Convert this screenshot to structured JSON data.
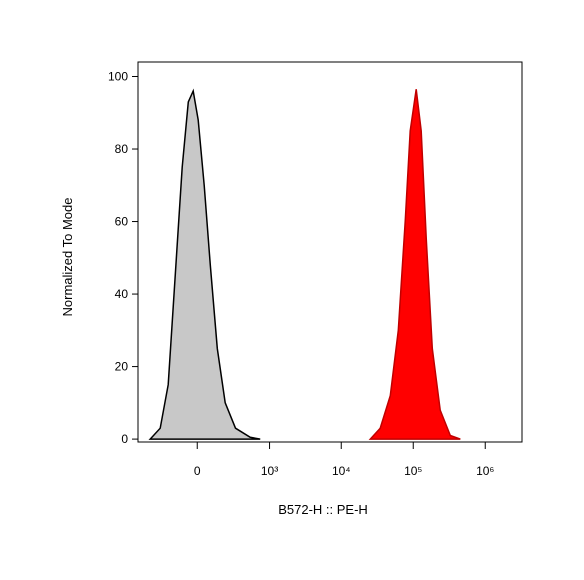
{
  "chart_data": {
    "type": "area",
    "x_label": "B572-H :: PE-H",
    "y_label": "Normalized To Mode",
    "xscale": "biexponential",
    "xlim": [
      -650,
      3240000
    ],
    "xticks": [
      0,
      {
        "value": 1000,
        "label": "10³"
      },
      {
        "value": 10000,
        "label": "10⁴"
      },
      {
        "value": 100000,
        "label": "10⁵"
      },
      {
        "value": 1000000,
        "label": "10⁶"
      }
    ],
    "ylim": [
      -0.8,
      104
    ],
    "yticks": [
      0,
      20,
      40,
      60,
      80,
      100
    ],
    "series": [
      {
        "color": "#c8c8c8",
        "outline": "#000000",
        "x": [
          -428,
          -296,
          -214,
          -153,
          -100,
          -58,
          -26,
          6,
          45,
          86,
          137,
          204,
          310,
          526,
          736
        ],
        "values": [
          0,
          3,
          15,
          45,
          75,
          93,
          96,
          88,
          70,
          48,
          25,
          10,
          3,
          0.5,
          0
        ]
      },
      {
        "color": "#ff0000",
        "outline": "#c00000",
        "x": [
          25300,
          34800,
          48000,
          62000,
          77400,
          90800,
          110000,
          129000,
          152000,
          184000,
          237000,
          327000,
          450000
        ],
        "values": [
          0,
          3,
          12,
          30,
          60,
          85,
          96.5,
          85,
          55,
          25,
          8,
          1,
          0
        ]
      }
    ]
  }
}
